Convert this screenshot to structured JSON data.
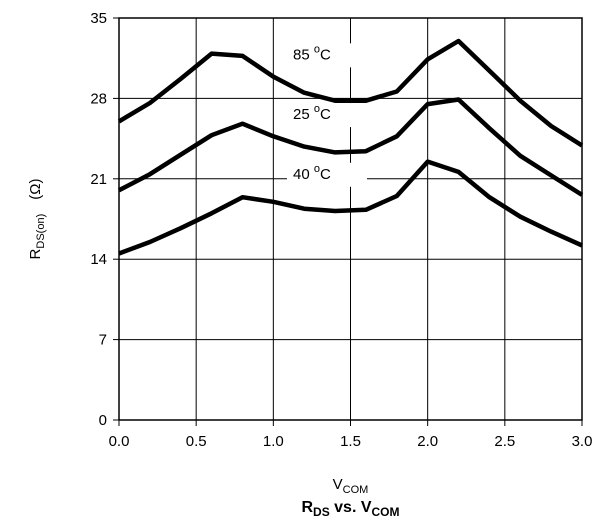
{
  "chart_data": {
    "type": "line",
    "title": {
      "main1": "R",
      "sub1": "DS",
      "mid": " vs. V",
      "sub2": "COM"
    },
    "xlabel": {
      "main": "V",
      "sub": "COM"
    },
    "ylabel": {
      "main": "R",
      "sub": "DS(on)",
      "unit": "(Ω)"
    },
    "xlim": [
      0,
      3
    ],
    "ylim": [
      0,
      35
    ],
    "xticks": [
      "0.0",
      "0.5",
      "1.0",
      "1.5",
      "2.0",
      "2.5",
      "3.0"
    ],
    "xtick_values": [
      0,
      0.5,
      1.0,
      1.5,
      2.0,
      2.5,
      3.0
    ],
    "yticks": [
      "0",
      "7",
      "14",
      "21",
      "28",
      "35"
    ],
    "ytick_values": [
      0,
      7,
      14,
      21,
      28,
      35
    ],
    "grid": true,
    "series": [
      {
        "name": "85 °C",
        "label_main": "85 ",
        "label_sup": "o",
        "label_unit": "C",
        "x": [
          0,
          0.2,
          0.4,
          0.6,
          0.8,
          1.0,
          1.2,
          1.4,
          1.6,
          1.8,
          2.0,
          2.2,
          2.4,
          2.6,
          2.8,
          3.0
        ],
        "y": [
          26.0,
          27.6,
          29.7,
          31.9,
          31.7,
          29.9,
          28.5,
          27.8,
          27.8,
          28.6,
          31.4,
          33.0,
          30.4,
          27.8,
          25.6,
          23.9
        ]
      },
      {
        "name": "25 °C",
        "label_main": "25 ",
        "label_sup": "o",
        "label_unit": "C",
        "x": [
          0,
          0.2,
          0.4,
          0.6,
          0.8,
          1.0,
          1.2,
          1.4,
          1.6,
          1.8,
          2.0,
          2.2,
          2.4,
          2.6,
          2.8,
          3.0
        ],
        "y": [
          20.0,
          21.4,
          23.1,
          24.8,
          25.8,
          24.7,
          23.8,
          23.3,
          23.4,
          24.7,
          27.5,
          27.9,
          25.4,
          23.0,
          21.3,
          19.6
        ]
      },
      {
        "name": "40 °C",
        "label_main": "40 ",
        "label_sup": "o",
        "label_unit": "C",
        "x": [
          0,
          0.2,
          0.4,
          0.6,
          0.8,
          1.0,
          1.2,
          1.4,
          1.6,
          1.8,
          2.0,
          2.2,
          2.4,
          2.6,
          2.8,
          3.0
        ],
        "y": [
          14.5,
          15.5,
          16.7,
          18.0,
          19.4,
          19.0,
          18.4,
          18.2,
          18.3,
          19.5,
          22.5,
          21.6,
          19.4,
          17.7,
          16.4,
          15.2
        ]
      }
    ]
  }
}
